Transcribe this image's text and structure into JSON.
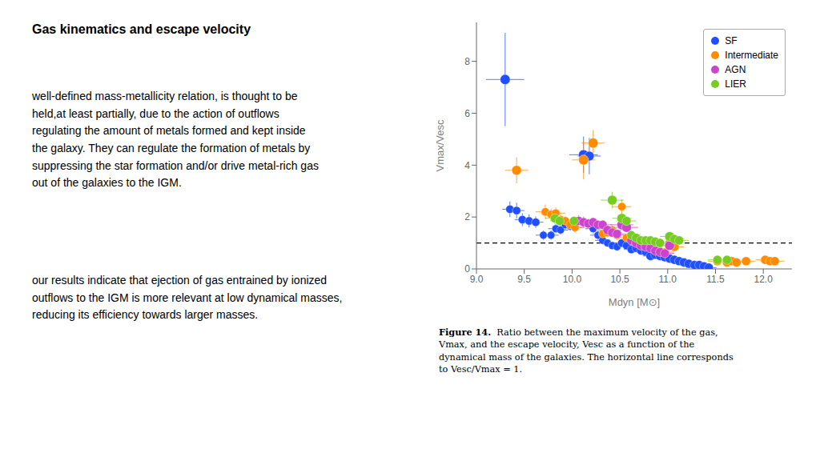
{
  "chart_data": {
    "type": "scatter",
    "title": "Gas kinematics and escape velocity",
    "paragraphs": [
      "well-defined mass-metallicity relation, is thought to be\nheld,at least partially, due to the action of outflows\nregulating the amount of metals formed and kept inside\nthe galaxy. They can regulate the formation of metals by\nsuppressing the star formation and/or drive metal-rich gas\nout of the galaxies to the IGM.",
      "our results indicate that ejection of gas entrained by ionized\noutflows to the IGM is more relevant at low dynamical masses,\nreducing its efficiency towards larger masses."
    ],
    "caption_label": "Figure 14.",
    "caption": "Ratio between the maximum velocity of the gas,\nVmax, and the escape velocity, Vesc as a function of the\ndynamical mass of the galaxies. The horizontal line corresponds\nto Vesc/Vmax = 1.",
    "xlabel": "Mdyn [M⊙]",
    "ylabel": "Vmax/Vesc",
    "xlim": [
      9.0,
      12.3
    ],
    "ylim": [
      0,
      9.5
    ],
    "xticks": [
      {
        "value": 9.0,
        "label": "9.0"
      },
      9.5,
      {
        "value": 10.0,
        "label": "10.0"
      },
      10.5,
      {
        "value": 11.0,
        "label": "11.0"
      },
      11.5,
      {
        "value": 12.0,
        "label": "12.0"
      }
    ],
    "yticks": [
      0,
      2,
      4,
      6,
      8
    ],
    "grid": false,
    "legend": "upper right",
    "marker": "circle",
    "reference_lines": [
      {
        "y": 1.0,
        "line_style": "dashed",
        "color": "#000000"
      }
    ],
    "series": [
      {
        "name": "SF",
        "color": "#1f4fff",
        "x": [
          9.3,
          9.35,
          9.42,
          9.48,
          9.55,
          9.62,
          9.7,
          9.78,
          9.83,
          9.88,
          9.93,
          9.98,
          10.03,
          10.12,
          10.18,
          10.22,
          10.27,
          10.32,
          10.37,
          10.42,
          10.47,
          10.52,
          10.57,
          10.62,
          10.67,
          10.72,
          10.77,
          10.82,
          10.87,
          10.92,
          10.97,
          11.02,
          11.07,
          11.12,
          11.17,
          11.22,
          11.28,
          11.33,
          11.38,
          11.43
        ],
        "values": [
          7.3,
          2.3,
          2.25,
          1.9,
          1.85,
          1.8,
          1.3,
          1.3,
          1.55,
          1.5,
          1.7,
          1.65,
          1.6,
          4.4,
          4.35,
          1.55,
          1.3,
          1.1,
          1.0,
          0.9,
          0.85,
          1.0,
          0.9,
          0.75,
          0.8,
          0.7,
          0.65,
          0.5,
          0.55,
          0.5,
          0.45,
          0.4,
          0.35,
          0.3,
          0.25,
          0.2,
          0.15,
          0.15,
          0.1,
          0.05
        ],
        "xerr": [
          0.2,
          0.08,
          0.08,
          0.08,
          0.08,
          0.08,
          0.08,
          0.08,
          0.08,
          0.08,
          0.08,
          0.08,
          0.08,
          0.15,
          0.12,
          0.08,
          0.08,
          0.08,
          0.08,
          0.08,
          0.08,
          0.08,
          0.08,
          0.08,
          0.08,
          0.08,
          0.08,
          0.08,
          0.08,
          0.08,
          0.08,
          0.08,
          0.08,
          0.08,
          0.08,
          0.08,
          0.08,
          0.08,
          0.08,
          0.08
        ],
        "yerr": [
          1.8,
          0.3,
          0.3,
          0.25,
          0.25,
          0.22,
          0.18,
          0.18,
          0.18,
          0.18,
          0.18,
          0.18,
          0.18,
          0.7,
          0.7,
          0.18,
          0.18,
          0.15,
          0.13,
          0.13,
          0.13,
          0.13,
          0.13,
          0.1,
          0.1,
          0.1,
          0.1,
          0.08,
          0.08,
          0.08,
          0.08,
          0.08,
          0.07,
          0.07,
          0.07,
          0.07,
          0.07,
          0.07,
          0.05,
          0.05
        ],
        "size": [
          80,
          55,
          55,
          55,
          55,
          55,
          48,
          48,
          48,
          48,
          48,
          48,
          48,
          80,
          75,
          48,
          48,
          48,
          48,
          48,
          48,
          55,
          55,
          55,
          55,
          55,
          55,
          65,
          65,
          65,
          65,
          65,
          65,
          65,
          65,
          65,
          65,
          65,
          65,
          65
        ]
      },
      {
        "name": "Intermediate",
        "color": "#ff8c00",
        "x": [
          9.42,
          9.72,
          9.78,
          9.83,
          9.88,
          9.93,
          9.98,
          10.03,
          10.12,
          10.22,
          10.32,
          10.37,
          10.42,
          10.47,
          10.52,
          10.57,
          10.62,
          10.67,
          10.72,
          10.77,
          10.82,
          10.87,
          10.92,
          10.97,
          11.02,
          11.07,
          11.52,
          11.62,
          11.67,
          11.72,
          11.82,
          12.02,
          12.07,
          12.12
        ],
        "values": [
          3.8,
          2.2,
          2.1,
          2.15,
          1.9,
          1.85,
          1.7,
          1.6,
          4.2,
          4.85,
          1.35,
          1.4,
          1.5,
          1.3,
          2.4,
          1.2,
          1.1,
          1.0,
          0.9,
          0.85,
          0.8,
          0.75,
          0.7,
          0.65,
          1.0,
          0.85,
          0.3,
          0.25,
          0.3,
          0.25,
          0.3,
          0.35,
          0.3,
          0.3
        ],
        "xerr": [
          0.12,
          0.1,
          0.1,
          0.1,
          0.1,
          0.1,
          0.1,
          0.1,
          0.12,
          0.12,
          0.1,
          0.1,
          0.1,
          0.1,
          0.1,
          0.1,
          0.1,
          0.1,
          0.1,
          0.1,
          0.1,
          0.1,
          0.1,
          0.1,
          0.1,
          0.1,
          0.1,
          0.1,
          0.1,
          0.1,
          0.1,
          0.1,
          0.1,
          0.1
        ],
        "yerr": [
          0.5,
          0.28,
          0.22,
          0.22,
          0.18,
          0.18,
          0.18,
          0.18,
          0.75,
          0.5,
          0.18,
          0.18,
          0.18,
          0.18,
          0.28,
          0.14,
          0.14,
          0.14,
          0.11,
          0.11,
          0.11,
          0.11,
          0.11,
          0.11,
          0.14,
          0.11,
          0.07,
          0.07,
          0.07,
          0.07,
          0.07,
          0.07,
          0.07,
          0.07
        ],
        "size": [
          75,
          55,
          55,
          55,
          55,
          55,
          55,
          55,
          80,
          80,
          55,
          55,
          55,
          55,
          55,
          55,
          55,
          55,
          55,
          55,
          55,
          55,
          55,
          55,
          65,
          65,
          65,
          65,
          65,
          65,
          65,
          65,
          65,
          65
        ]
      },
      {
        "name": "AGN",
        "color": "#cc44cc",
        "x": [
          10.07,
          10.12,
          10.17,
          10.22,
          10.27,
          10.32,
          10.37,
          10.42,
          10.47,
          10.52,
          10.57,
          10.62,
          10.67,
          10.72,
          10.77,
          10.82,
          10.87,
          10.92,
          10.97,
          11.02
        ],
        "values": [
          1.85,
          1.8,
          1.75,
          1.8,
          1.7,
          1.7,
          1.5,
          1.4,
          1.35,
          1.7,
          1.6,
          1.1,
          1.0,
          0.9,
          0.85,
          0.8,
          0.7,
          0.65,
          0.6,
          0.9
        ],
        "xerr": [
          0.1,
          0.1,
          0.1,
          0.1,
          0.1,
          0.1,
          0.1,
          0.1,
          0.1,
          0.12,
          0.12,
          0.1,
          0.1,
          0.1,
          0.1,
          0.1,
          0.1,
          0.1,
          0.1,
          0.1
        ],
        "yerr": [
          0.22,
          0.22,
          0.18,
          0.18,
          0.18,
          0.18,
          0.14,
          0.14,
          0.14,
          0.18,
          0.18,
          0.14,
          0.11,
          0.11,
          0.11,
          0.11,
          0.11,
          0.09,
          0.09,
          0.11
        ],
        "size": [
          65,
          65,
          65,
          65,
          65,
          65,
          65,
          65,
          65,
          75,
          75,
          65,
          65,
          65,
          65,
          65,
          65,
          65,
          65,
          75
        ]
      },
      {
        "name": "LIER",
        "color": "#77cc22",
        "x": [
          9.82,
          9.87,
          10.02,
          10.42,
          10.52,
          10.57,
          10.62,
          10.67,
          10.72,
          10.77,
          10.82,
          10.87,
          10.92,
          11.02,
          11.07,
          11.12,
          11.52,
          11.62
        ],
        "values": [
          1.95,
          1.85,
          1.85,
          2.65,
          1.95,
          1.85,
          1.3,
          1.2,
          1.1,
          1.1,
          1.1,
          1.05,
          1.0,
          1.25,
          1.15,
          1.1,
          0.35,
          0.35
        ],
        "xerr": [
          0.1,
          0.1,
          0.1,
          0.12,
          0.1,
          0.1,
          0.1,
          0.1,
          0.1,
          0.1,
          0.1,
          0.1,
          0.1,
          0.1,
          0.1,
          0.1,
          0.1,
          0.1
        ],
        "yerr": [
          0.22,
          0.18,
          0.18,
          0.32,
          0.22,
          0.18,
          0.14,
          0.14,
          0.11,
          0.11,
          0.11,
          0.11,
          0.11,
          0.14,
          0.11,
          0.11,
          0.07,
          0.07
        ],
        "size": [
          65,
          65,
          65,
          75,
          75,
          65,
          65,
          65,
          65,
          65,
          65,
          65,
          65,
          75,
          65,
          65,
          65,
          65
        ]
      }
    ]
  }
}
